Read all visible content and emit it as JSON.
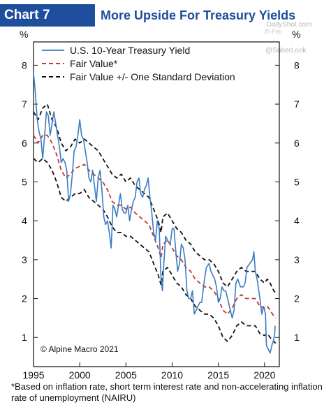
{
  "header": {
    "badge": "Chart 7",
    "title": "More Upside For Treasury Yields"
  },
  "watermark": {
    "site": "DailyShot.com",
    "date": "25-Feb",
    "handle": "@SoberLook"
  },
  "copyright": "© Alpine Macro 2021",
  "footnote": "*Based on inflation rate, short term interest rate and non-accelerating inflation rate of unemployment (NAIRU)",
  "chart_data": {
    "type": "line",
    "ylabel_left": "%",
    "ylabel_right": "%",
    "xlim": [
      1995,
      2021.6
    ],
    "ylim": [
      0.25,
      8.6
    ],
    "x_ticks": [
      1995,
      2000,
      2005,
      2010,
      2015,
      2020
    ],
    "y_ticks": [
      1,
      2,
      3,
      4,
      5,
      6,
      7,
      8
    ],
    "grid": false,
    "legend_position": "top-left",
    "series": [
      {
        "name": "U.S. 10-Year Treasury Yield",
        "color": "#3a7cc4",
        "style": "solid",
        "points": [
          [
            1995.0,
            7.8
          ],
          [
            1995.2,
            7.3
          ],
          [
            1995.4,
            6.6
          ],
          [
            1995.6,
            6.3
          ],
          [
            1995.8,
            6.1
          ],
          [
            1996.0,
            5.6
          ],
          [
            1996.2,
            6.2
          ],
          [
            1996.4,
            6.8
          ],
          [
            1996.6,
            6.7
          ],
          [
            1996.8,
            6.2
          ],
          [
            1997.0,
            6.5
          ],
          [
            1997.2,
            6.8
          ],
          [
            1997.4,
            6.5
          ],
          [
            1997.6,
            6.2
          ],
          [
            1997.8,
            5.9
          ],
          [
            1998.0,
            5.5
          ],
          [
            1998.2,
            5.6
          ],
          [
            1998.4,
            5.5
          ],
          [
            1998.6,
            5.3
          ],
          [
            1998.8,
            4.5
          ],
          [
            1999.0,
            4.7
          ],
          [
            1999.2,
            5.2
          ],
          [
            1999.4,
            5.8
          ],
          [
            1999.6,
            5.9
          ],
          [
            1999.8,
            6.2
          ],
          [
            2000.0,
            6.6
          ],
          [
            2000.2,
            6.2
          ],
          [
            2000.4,
            6.1
          ],
          [
            2000.6,
            5.8
          ],
          [
            2000.8,
            5.5
          ],
          [
            2001.0,
            5.1
          ],
          [
            2001.2,
            5.0
          ],
          [
            2001.4,
            5.3
          ],
          [
            2001.6,
            4.9
          ],
          [
            2001.8,
            4.5
          ],
          [
            2002.0,
            5.1
          ],
          [
            2002.2,
            5.3
          ],
          [
            2002.4,
            4.8
          ],
          [
            2002.6,
            4.1
          ],
          [
            2002.8,
            3.9
          ],
          [
            2003.0,
            4.0
          ],
          [
            2003.2,
            3.7
          ],
          [
            2003.4,
            3.3
          ],
          [
            2003.6,
            4.4
          ],
          [
            2003.8,
            4.3
          ],
          [
            2004.0,
            4.1
          ],
          [
            2004.2,
            4.4
          ],
          [
            2004.4,
            4.7
          ],
          [
            2004.6,
            4.3
          ],
          [
            2004.8,
            4.2
          ],
          [
            2005.0,
            4.2
          ],
          [
            2005.2,
            4.4
          ],
          [
            2005.4,
            4.0
          ],
          [
            2005.6,
            4.3
          ],
          [
            2005.8,
            4.5
          ],
          [
            2006.0,
            4.6
          ],
          [
            2006.2,
            5.0
          ],
          [
            2006.4,
            5.1
          ],
          [
            2006.6,
            4.7
          ],
          [
            2006.8,
            4.6
          ],
          [
            2007.0,
            4.8
          ],
          [
            2007.2,
            4.9
          ],
          [
            2007.4,
            5.1
          ],
          [
            2007.6,
            4.6
          ],
          [
            2007.8,
            4.2
          ],
          [
            2008.0,
            3.7
          ],
          [
            2008.2,
            3.5
          ],
          [
            2008.4,
            4.0
          ],
          [
            2008.6,
            3.8
          ],
          [
            2008.8,
            2.5
          ],
          [
            2008.95,
            2.2
          ],
          [
            2009.1,
            2.9
          ],
          [
            2009.3,
            3.6
          ],
          [
            2009.5,
            3.5
          ],
          [
            2009.8,
            3.4
          ],
          [
            2010.0,
            3.8
          ],
          [
            2010.2,
            3.8
          ],
          [
            2010.4,
            3.2
          ],
          [
            2010.6,
            2.7
          ],
          [
            2010.8,
            2.9
          ],
          [
            2011.0,
            3.4
          ],
          [
            2011.2,
            3.3
          ],
          [
            2011.4,
            3.0
          ],
          [
            2011.6,
            2.2
          ],
          [
            2011.8,
            2.0
          ],
          [
            2012.0,
            2.0
          ],
          [
            2012.2,
            2.2
          ],
          [
            2012.4,
            1.6
          ],
          [
            2012.6,
            1.7
          ],
          [
            2012.8,
            1.8
          ],
          [
            2013.0,
            1.9
          ],
          [
            2013.2,
            1.9
          ],
          [
            2013.5,
            2.5
          ],
          [
            2013.7,
            2.8
          ],
          [
            2014.0,
            2.9
          ],
          [
            2014.2,
            2.7
          ],
          [
            2014.4,
            2.6
          ],
          [
            2014.6,
            2.5
          ],
          [
            2014.8,
            2.3
          ],
          [
            2015.0,
            1.9
          ],
          [
            2015.2,
            2.0
          ],
          [
            2015.4,
            2.3
          ],
          [
            2015.6,
            2.2
          ],
          [
            2015.8,
            2.2
          ],
          [
            2016.0,
            2.0
          ],
          [
            2016.2,
            1.8
          ],
          [
            2016.5,
            1.5
          ],
          [
            2016.7,
            1.7
          ],
          [
            2016.9,
            2.4
          ],
          [
            2017.1,
            2.5
          ],
          [
            2017.4,
            2.3
          ],
          [
            2017.7,
            2.3
          ],
          [
            2017.9,
            2.4
          ],
          [
            2018.1,
            2.8
          ],
          [
            2018.4,
            2.9
          ],
          [
            2018.7,
            3.0
          ],
          [
            2018.85,
            3.2
          ],
          [
            2019.0,
            2.7
          ],
          [
            2019.2,
            2.5
          ],
          [
            2019.5,
            2.0
          ],
          [
            2019.7,
            1.6
          ],
          [
            2019.9,
            1.8
          ],
          [
            2020.1,
            1.6
          ],
          [
            2020.2,
            0.8
          ],
          [
            2020.4,
            0.7
          ],
          [
            2020.6,
            0.6
          ],
          [
            2020.8,
            0.8
          ],
          [
            2020.95,
            0.9
          ],
          [
            2021.1,
            1.1
          ],
          [
            2021.15,
            1.3
          ]
        ]
      },
      {
        "name": "Fair Value*",
        "color": "#c0392b",
        "style": "dashed",
        "points": [
          [
            1995.0,
            6.2
          ],
          [
            1995.5,
            6.0
          ],
          [
            1996.0,
            6.2
          ],
          [
            1996.5,
            6.2
          ],
          [
            1997.0,
            6.0
          ],
          [
            1997.5,
            5.7
          ],
          [
            1998.0,
            5.3
          ],
          [
            1998.5,
            5.1
          ],
          [
            1999.0,
            5.2
          ],
          [
            1999.5,
            5.35
          ],
          [
            2000.0,
            5.4
          ],
          [
            2000.5,
            5.45
          ],
          [
            2001.0,
            5.3
          ],
          [
            2001.5,
            5.2
          ],
          [
            2002.0,
            5.1
          ],
          [
            2002.5,
            5.0
          ],
          [
            2003.0,
            4.8
          ],
          [
            2003.5,
            4.5
          ],
          [
            2004.0,
            4.4
          ],
          [
            2004.5,
            4.4
          ],
          [
            2005.0,
            4.3
          ],
          [
            2005.5,
            4.35
          ],
          [
            2006.0,
            4.2
          ],
          [
            2006.5,
            4.1
          ],
          [
            2007.0,
            4.0
          ],
          [
            2007.5,
            3.9
          ],
          [
            2008.0,
            3.6
          ],
          [
            2008.5,
            3.3
          ],
          [
            2008.8,
            3.05
          ],
          [
            2009.0,
            3.4
          ],
          [
            2009.5,
            3.5
          ],
          [
            2010.0,
            3.3
          ],
          [
            2010.5,
            3.1
          ],
          [
            2011.0,
            3.0
          ],
          [
            2011.5,
            2.8
          ],
          [
            2012.0,
            2.7
          ],
          [
            2012.5,
            2.5
          ],
          [
            2013.0,
            2.4
          ],
          [
            2013.5,
            2.3
          ],
          [
            2014.0,
            2.3
          ],
          [
            2014.5,
            2.2
          ],
          [
            2015.0,
            2.0
          ],
          [
            2015.5,
            1.7
          ],
          [
            2016.0,
            1.6
          ],
          [
            2016.5,
            1.75
          ],
          [
            2017.0,
            2.0
          ],
          [
            2017.5,
            2.1
          ],
          [
            2018.0,
            2.0
          ],
          [
            2018.5,
            2.0
          ],
          [
            2019.0,
            2.0
          ],
          [
            2019.5,
            1.8
          ],
          [
            2020.0,
            1.75
          ],
          [
            2020.3,
            1.8
          ],
          [
            2020.6,
            1.7
          ],
          [
            2021.0,
            1.55
          ],
          [
            2021.2,
            1.5
          ]
        ]
      },
      {
        "name": "Fair Value +/- One Standard Deviation",
        "color": "#111111",
        "style": "dashed",
        "points": [
          [
            1995.0,
            6.8
          ],
          [
            1995.5,
            6.6
          ],
          [
            1996.0,
            6.9
          ],
          [
            1996.5,
            7.0
          ],
          [
            1997.0,
            6.6
          ],
          [
            1997.5,
            6.4
          ],
          [
            1998.0,
            6.0
          ],
          [
            1998.5,
            5.8
          ],
          [
            1999.0,
            5.9
          ],
          [
            1999.5,
            6.1
          ],
          [
            2000.0,
            6.0
          ],
          [
            2000.5,
            6.1
          ],
          [
            2001.0,
            6.0
          ],
          [
            2001.5,
            5.9
          ],
          [
            2002.0,
            5.8
          ],
          [
            2002.5,
            5.6
          ],
          [
            2003.0,
            5.4
          ],
          [
            2003.5,
            5.2
          ],
          [
            2004.0,
            5.1
          ],
          [
            2004.5,
            5.2
          ],
          [
            2005.0,
            5.0
          ],
          [
            2005.5,
            5.1
          ],
          [
            2006.0,
            4.9
          ],
          [
            2006.5,
            4.8
          ],
          [
            2007.0,
            4.7
          ],
          [
            2007.5,
            4.6
          ],
          [
            2008.0,
            4.3
          ],
          [
            2008.5,
            4.0
          ],
          [
            2008.8,
            3.7
          ],
          [
            2009.0,
            4.1
          ],
          [
            2009.5,
            4.2
          ],
          [
            2010.0,
            4.0
          ],
          [
            2010.5,
            3.8
          ],
          [
            2011.0,
            3.7
          ],
          [
            2011.5,
            3.5
          ],
          [
            2012.0,
            3.4
          ],
          [
            2012.5,
            3.2
          ],
          [
            2013.0,
            3.1
          ],
          [
            2013.5,
            3.0
          ],
          [
            2014.0,
            3.0
          ],
          [
            2014.5,
            2.9
          ],
          [
            2015.0,
            2.7
          ],
          [
            2015.5,
            2.4
          ],
          [
            2016.0,
            2.3
          ],
          [
            2016.5,
            2.5
          ],
          [
            2017.0,
            2.7
          ],
          [
            2017.5,
            2.8
          ],
          [
            2018.0,
            2.7
          ],
          [
            2018.5,
            2.7
          ],
          [
            2019.0,
            2.7
          ],
          [
            2019.5,
            2.5
          ],
          [
            2020.0,
            2.4
          ],
          [
            2020.3,
            2.5
          ],
          [
            2020.6,
            2.4
          ],
          [
            2021.0,
            2.2
          ],
          [
            2021.2,
            2.15
          ]
        ]
      },
      {
        "name": "Fair Value - One Standard Deviation",
        "color": "#111111",
        "style": "dashed",
        "points": [
          [
            1995.0,
            5.6
          ],
          [
            1995.5,
            5.5
          ],
          [
            1996.0,
            5.6
          ],
          [
            1996.5,
            5.5
          ],
          [
            1997.0,
            5.3
          ],
          [
            1997.5,
            5.0
          ],
          [
            1998.0,
            4.6
          ],
          [
            1998.5,
            4.5
          ],
          [
            1999.0,
            4.6
          ],
          [
            1999.5,
            4.7
          ],
          [
            2000.0,
            4.7
          ],
          [
            2000.5,
            4.8
          ],
          [
            2001.0,
            4.6
          ],
          [
            2001.5,
            4.5
          ],
          [
            2002.0,
            4.4
          ],
          [
            2002.5,
            4.3
          ],
          [
            2003.0,
            4.1
          ],
          [
            2003.5,
            3.85
          ],
          [
            2004.0,
            3.7
          ],
          [
            2004.5,
            3.7
          ],
          [
            2005.0,
            3.6
          ],
          [
            2005.5,
            3.6
          ],
          [
            2006.0,
            3.5
          ],
          [
            2006.5,
            3.4
          ],
          [
            2007.0,
            3.3
          ],
          [
            2007.5,
            3.2
          ],
          [
            2008.0,
            2.9
          ],
          [
            2008.5,
            2.6
          ],
          [
            2008.8,
            2.35
          ],
          [
            2009.0,
            2.7
          ],
          [
            2009.5,
            2.8
          ],
          [
            2010.0,
            2.6
          ],
          [
            2010.5,
            2.4
          ],
          [
            2011.0,
            2.3
          ],
          [
            2011.5,
            2.1
          ],
          [
            2012.0,
            2.0
          ],
          [
            2012.5,
            1.8
          ],
          [
            2013.0,
            1.7
          ],
          [
            2013.5,
            1.6
          ],
          [
            2014.0,
            1.6
          ],
          [
            2014.5,
            1.5
          ],
          [
            2015.0,
            1.3
          ],
          [
            2015.5,
            1.0
          ],
          [
            2016.0,
            0.9
          ],
          [
            2016.5,
            1.05
          ],
          [
            2017.0,
            1.3
          ],
          [
            2017.5,
            1.4
          ],
          [
            2018.0,
            1.3
          ],
          [
            2018.5,
            1.3
          ],
          [
            2019.0,
            1.3
          ],
          [
            2019.5,
            1.1
          ],
          [
            2020.0,
            1.05
          ],
          [
            2020.3,
            1.1
          ],
          [
            2020.6,
            1.0
          ],
          [
            2021.0,
            0.9
          ],
          [
            2021.2,
            0.85
          ]
        ]
      }
    ]
  }
}
